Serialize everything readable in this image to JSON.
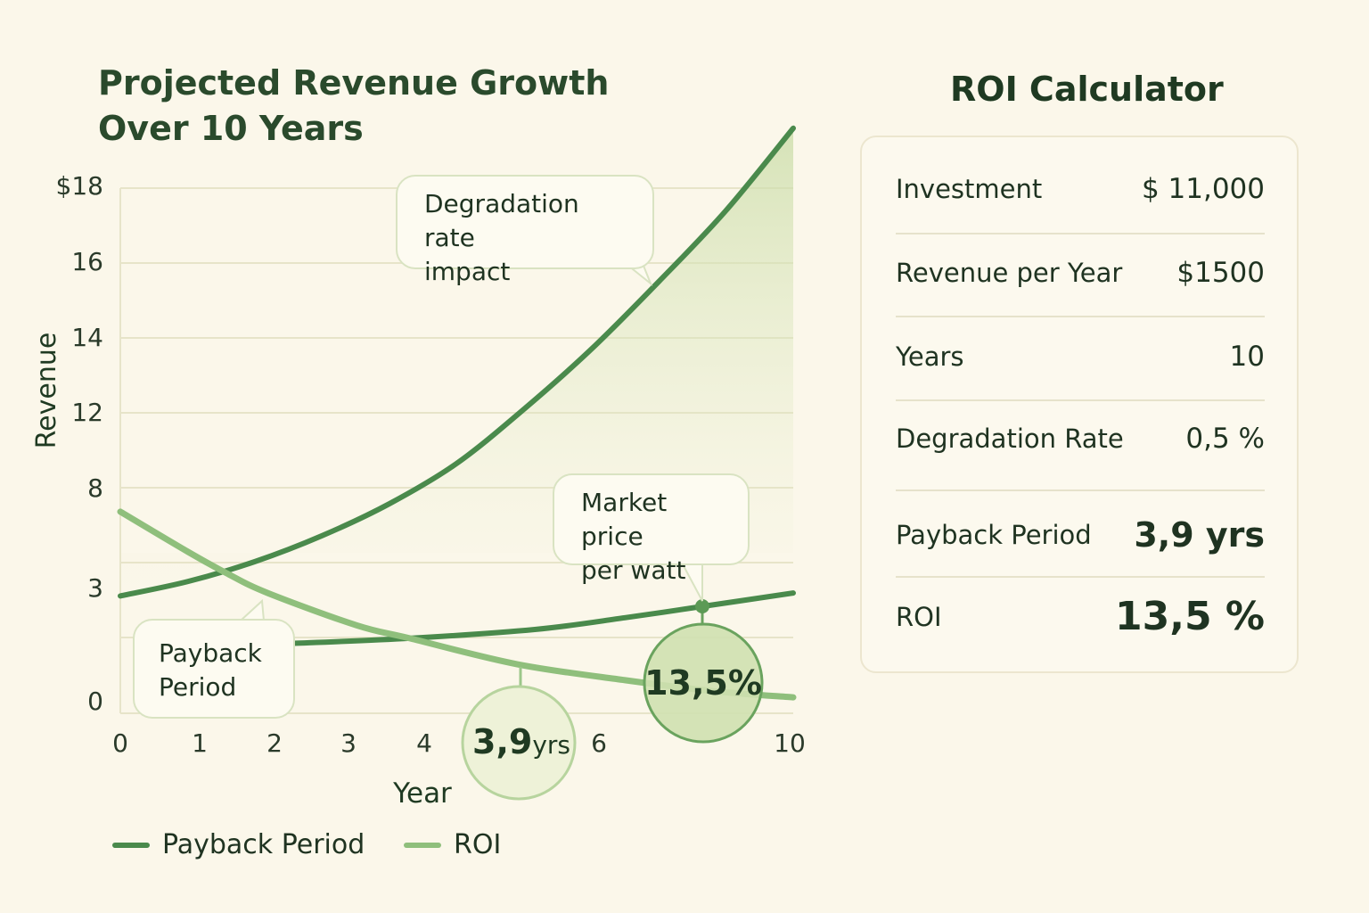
{
  "chart_data": {
    "type": "line",
    "title": "Projected Revenue Growth Over 10 Years",
    "xlabel": "Year",
    "ylabel": "Revenue",
    "x_ticks": [
      "0",
      "1",
      "2",
      "3",
      "4",
      "6",
      "10"
    ],
    "x_tick_values": [
      0,
      1,
      2,
      3,
      4,
      6,
      10
    ],
    "y_ticks": [
      "$18",
      "16",
      "14",
      "12",
      "8",
      "3",
      "0"
    ],
    "y_tick_values": [
      18,
      16,
      14,
      12,
      8,
      3,
      0
    ],
    "xlim": [
      0,
      10
    ],
    "grid": true,
    "legend": "bottom-left",
    "series": [
      {
        "name": "Payback Period",
        "color": "#4a8a4c",
        "x": [
          0,
          1,
          2,
          3,
          4,
          5,
          6,
          7,
          8,
          9,
          10
        ],
        "y": [
          2.8,
          3.3,
          4.3,
          5.6,
          7.2,
          9.3,
          12.1,
          13.7,
          15.5,
          17.4,
          19.6
        ],
        "fill": true
      },
      {
        "color": "#4a8a4c",
        "x": [
          2.45,
          4.3,
          6.16,
          7.5,
          8.65,
          10
        ],
        "y": [
          1.66,
          1.79,
          2.0,
          2.28,
          2.55,
          2.87
        ]
      },
      {
        "name": "ROI",
        "color": "#8fbf7c",
        "x": [
          0,
          1,
          1.59,
          2.19,
          3.51,
          4.3,
          5.9,
          7.5,
          8.8,
          10
        ],
        "y": [
          6.8,
          4.8,
          3.7,
          2.87,
          2.1,
          1.79,
          1.17,
          0.79,
          0.53,
          0.38
        ]
      }
    ],
    "annotations": [
      {
        "text": "Degradation rate impact"
      },
      {
        "text": "Market price per watt"
      },
      {
        "text": "Payback Period"
      },
      {
        "text_value": "3,9",
        "text_unit": "yrs",
        "x": 5.9
      },
      {
        "text": "13,5%",
        "x": 8.65
      }
    ]
  },
  "title_lines": [
    "Projected Revenue Growth",
    "Over 10 Years"
  ],
  "callouts": {
    "degradation": [
      "Degradation rate",
      "impact"
    ],
    "market": [
      "Market price",
      "per watt"
    ],
    "payback": [
      "Payback",
      "Period"
    ]
  },
  "badges": {
    "payback_value": "3,9",
    "payback_unit": "yrs",
    "roi": "13,5%"
  },
  "legend": [
    {
      "label": "Payback Period",
      "color": "#4a8a4c"
    },
    {
      "label": "ROI",
      "color": "#8fbf7c"
    }
  ],
  "calculator": {
    "title": "ROI Calculator",
    "rows": [
      {
        "label": "Investment",
        "value": "$ 11,000"
      },
      {
        "label": "Revenue per Year",
        "value": "$1500"
      },
      {
        "label": "Years",
        "value": "10"
      },
      {
        "label": "Degradation Rate",
        "value": "0,5 %"
      },
      {
        "label": "Payback Period",
        "value": "3,9 yrs"
      },
      {
        "label": "ROI",
        "value": "13,5 %"
      }
    ]
  }
}
